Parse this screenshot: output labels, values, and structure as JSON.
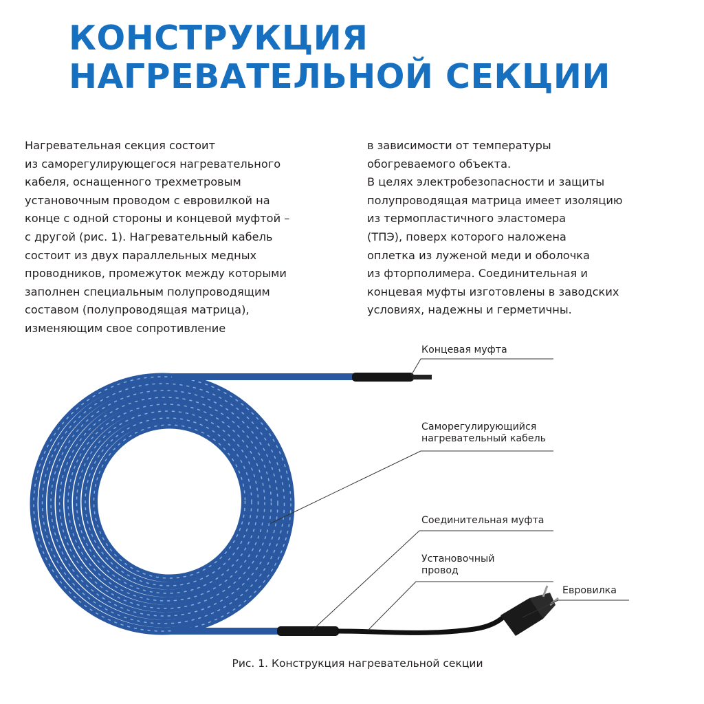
{
  "title": {
    "lines": [
      "КОНСТРУКЦИЯ",
      "НАГРЕВАТЕЛЬНОЙ СЕКЦИИ"
    ],
    "color": "#1670bf"
  },
  "body": {
    "left_lines": [
      "Нагревательная секция состоит",
      "из саморегулирующегося нагревательного",
      "кабеля, оснащенного трехметровым",
      "установочным проводом с евровилкой на",
      "конце с одной стороны и концевой муфтой –",
      "с другой (рис. 1). Нагревательный кабель",
      "состоит из двух параллельных медных",
      "проводников, промежуток между которыми",
      "заполнен специальным полупроводящим",
      "составом (полупроводящая матрица),",
      "изменяющим свое сопротивление"
    ],
    "right_lines": [
      "в зависимости от температуры",
      "обогреваемого объекта.",
      "В целях электробезопасности и защиты",
      "полупроводящая матрица имеет изоляцию",
      "из термопластичного эластомера",
      "(ТПЭ), поверх которого наложена",
      "оплетка из луженой меди и оболочка",
      "из фторполимера. Соединительная и",
      "концевая муфты изготовлены в заводских",
      "условиях, надежны и герметичны."
    ]
  },
  "figure": {
    "labels": {
      "end_sleeve": "Концевая муфта",
      "heating_cable": [
        "Саморегулирующийся",
        "нагревательный кабель"
      ],
      "connecting_sleeve": "Соединительная муфта",
      "install_wire": [
        "Установочный",
        "провод"
      ],
      "euro_plug": "Евровилка"
    },
    "caption": "Рис. 1. Конструкция нагревательной секции",
    "cable_color": "#2a58a0"
  }
}
